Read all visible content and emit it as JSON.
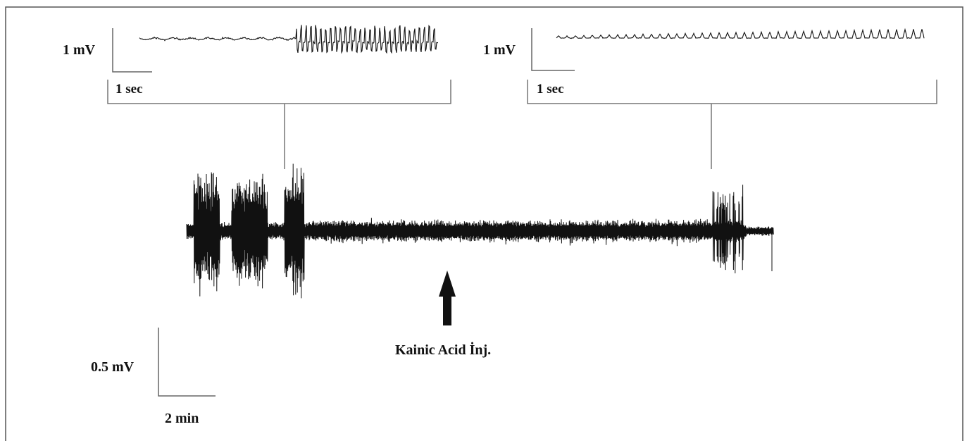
{
  "figure": {
    "colors": {
      "trace": "#111111",
      "frame": "#555555",
      "bracket": "#777777",
      "scale_bar": "#666666",
      "arrow": "#111111"
    },
    "left_inset": {
      "voltage_scale": "1 mV",
      "time_scale": "1 sec"
    },
    "right_inset": {
      "voltage_scale": "1 mV",
      "time_scale": "1 sec"
    },
    "main_trace": {
      "voltage_scale": "0.5 mV",
      "time_scale": "2 min",
      "annotation": "Kainic Acid İnj."
    }
  }
}
